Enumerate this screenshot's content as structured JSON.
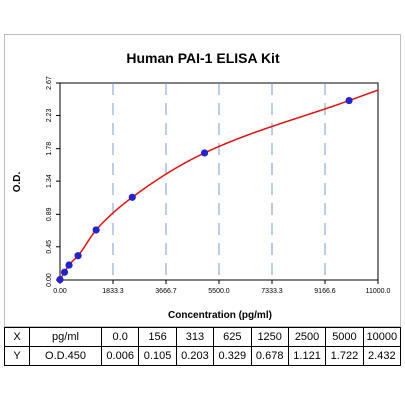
{
  "chart_data": {
    "type": "scatter",
    "title": "Human PAI-1 ELISA Kit",
    "xlabel": "Concentration (pg/ml)",
    "ylabel": "O.D.",
    "xlim": [
      0,
      11000
    ],
    "ylim": [
      0,
      2.67
    ],
    "x_ticks": [
      "0.00",
      "1833.3",
      "3666.7",
      "5500.0",
      "7333.3",
      "9166.6",
      "11000.0"
    ],
    "y_ticks": [
      "0.00",
      "0.45",
      "0.89",
      "1.34",
      "1.78",
      "2.23",
      "2.67"
    ],
    "grid": "vertical dashed",
    "series": [
      {
        "x": [
          0,
          156,
          313,
          625,
          1250,
          2500,
          5000,
          10000
        ],
        "y": [
          0.006,
          0.105,
          0.203,
          0.329,
          0.678,
          1.121,
          1.722,
          2.432
        ],
        "marker_color": "#2323c8",
        "curve_color": "#e01010"
      }
    ]
  },
  "table": {
    "x_row": {
      "label": "X",
      "unit": "pg/ml",
      "values": [
        "0.0",
        "156",
        "313",
        "625",
        "1250",
        "2500",
        "5000",
        "10000"
      ]
    },
    "y_row": {
      "label": "Y",
      "unit": "O.D.450",
      "values": [
        "0.006",
        "0.105",
        "0.203",
        "0.329",
        "0.678",
        "1.121",
        "1.722",
        "2.432"
      ]
    }
  }
}
